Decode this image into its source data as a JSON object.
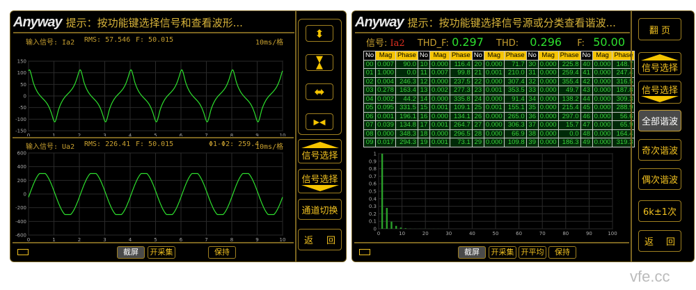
{
  "left": {
    "logo": "Anyway",
    "hint": "提示：按功能键选择信号和查看波形...",
    "ch1": {
      "label": "输入信号: Ia2",
      "rms": "RMS: 57.546",
      "freq": "F: 50.015",
      "scale": "10ms/格"
    },
    "ch2": {
      "label": "输入信号: Ua2",
      "rms": "RMS: 226.41",
      "freq": "F: 50.015",
      "phase": "Φ1-Φ2: 259.4",
      "scale": "10ms/格"
    },
    "side": {
      "expand_v_icon": "expand-vertical",
      "compress_v_icon": "compress-vertical",
      "expand_h_icon": "expand-horizontal",
      "compress_h_icon": "compress-horizontal",
      "signal_up": "信号选择",
      "signal_down": "信号选择",
      "channel": "通道切换",
      "back_a": "返",
      "back_b": "回"
    },
    "bottom": {
      "screenshot": "截屏",
      "acquire": "开采集",
      "hold": "保持"
    }
  },
  "right": {
    "logo": "Anyway",
    "hint": "提示：按功能键选择信号源或分类查看谐波...",
    "signal_label": "信号:",
    "signal": "Ia2",
    "thdf_label": "THD_F:",
    "thdf": "0.297",
    "thd_label": "THD:",
    "thd": "0.296",
    "f_label": "F:",
    "f": "50.00",
    "table_headers": [
      "No",
      "Mag",
      "Phase"
    ],
    "side": {
      "page": "翻  页",
      "signal_up": "信号选择",
      "signal_down": "信号选择",
      "all": "全部谐波",
      "odd": "奇次谐波",
      "even": "偶次谐波",
      "k6": "6k±1次",
      "back_a": "返",
      "back_b": "回"
    },
    "bottom": {
      "screenshot": "截屏",
      "acquire": "开采集",
      "average": "开平均",
      "hold": "保持"
    }
  },
  "harmonics": [
    [
      "00",
      "0.007",
      "90.0"
    ],
    [
      "01",
      "1.000",
      "0.0"
    ],
    [
      "02",
      "0.004",
      "246.3"
    ],
    [
      "03",
      "0.278",
      "163.4"
    ],
    [
      "04",
      "0.002",
      "44.2"
    ],
    [
      "05",
      "0.095",
      "331.5"
    ],
    [
      "06",
      "0.001",
      "196.1"
    ],
    [
      "07",
      "0.039",
      "134.8"
    ],
    [
      "08",
      "0.000",
      "348.3"
    ],
    [
      "09",
      "0.017",
      "294.3"
    ],
    [
      "10",
      "0.000",
      "116.4"
    ],
    [
      "11",
      "0.007",
      "99.8"
    ],
    [
      "12",
      "0.000",
      "237.5"
    ],
    [
      "13",
      "0.002",
      "277.3"
    ],
    [
      "14",
      "0.000",
      "335.8"
    ],
    [
      "15",
      "0.001",
      "109.1"
    ],
    [
      "16",
      "0.000",
      "134.1"
    ],
    [
      "17",
      "0.001",
      "264.7"
    ],
    [
      "18",
      "0.000",
      "296.5"
    ],
    [
      "19",
      "0.001",
      "73.1"
    ],
    [
      "20",
      "0.000",
      "71.7"
    ],
    [
      "21",
      "0.001",
      "210.0"
    ],
    [
      "22",
      "0.000",
      "307.4"
    ],
    [
      "23",
      "0.001",
      "353.5"
    ],
    [
      "24",
      "0.000",
      "91.4"
    ],
    [
      "25",
      "0.001",
      "155.1"
    ],
    [
      "26",
      "0.000",
      "265.0"
    ],
    [
      "27",
      "0.000",
      "306.3"
    ],
    [
      "28",
      "0.000",
      "66.9"
    ],
    [
      "29",
      "0.000",
      "109.8"
    ],
    [
      "30",
      "0.000",
      "225.8"
    ],
    [
      "31",
      "0.000",
      "259.4"
    ],
    [
      "32",
      "0.000",
      "355.4"
    ],
    [
      "33",
      "0.000",
      "49.7"
    ],
    [
      "34",
      "0.000",
      "138.2"
    ],
    [
      "35",
      "0.000",
      "215.4"
    ],
    [
      "36",
      "0.000",
      "297.0"
    ],
    [
      "37",
      "0.000",
      "15.7"
    ],
    [
      "38",
      "0.000",
      "0.0"
    ],
    [
      "39",
      "0.000",
      "186.3"
    ],
    [
      "40",
      "0.000",
      "148.7"
    ],
    [
      "41",
      "0.000",
      "247.4"
    ],
    [
      "42",
      "0.000",
      "316.5"
    ],
    [
      "43",
      "0.000",
      "187.8"
    ],
    [
      "44",
      "0.000",
      "309.3"
    ],
    [
      "45",
      "0.000",
      "288.9"
    ],
    [
      "46",
      "0.000",
      "56.6"
    ],
    [
      "47",
      "0.000",
      "65.9"
    ],
    [
      "48",
      "0.000",
      "164.4"
    ],
    [
      "49",
      "0.000",
      "319.3"
    ]
  ],
  "chart_data": [
    {
      "type": "line",
      "title": "",
      "xlim": [
        0,
        10
      ],
      "ylim": [
        -150,
        150
      ],
      "xticks": [
        "0",
        "1",
        "2",
        "3",
        "4",
        "5",
        "6",
        "7",
        "8",
        "9",
        "10"
      ],
      "yticks": [
        "150",
        "100",
        "50",
        "0",
        "-50",
        "-100",
        "-150"
      ],
      "grid": true,
      "series": [
        {
          "signal": "Ia2",
          "rms": 57.546,
          "freq": 50.015,
          "harmonic_source": "harmonics"
        }
      ],
      "color": "#2ee02e"
    },
    {
      "type": "line",
      "title": "",
      "xlim": [
        0,
        10
      ],
      "ylim": [
        -600,
        600
      ],
      "xticks": [
        "0",
        "1",
        "2",
        "3",
        "4",
        "5",
        "6",
        "7",
        "8",
        "9",
        "10"
      ],
      "yticks": [
        "600",
        "400",
        "200",
        "0",
        "-200",
        "-400",
        "-600"
      ],
      "grid": true,
      "series": [
        {
          "signal": "Ua2",
          "rms": 226.41,
          "freq": 50.015,
          "peak_clip": 300
        }
      ],
      "color": "#2ee02e"
    },
    {
      "type": "bar",
      "title": "",
      "xlim": [
        0,
        100
      ],
      "ylim": [
        0,
        1
      ],
      "xticks": [
        "0",
        "10",
        "20",
        "30",
        "40",
        "50",
        "60",
        "70",
        "80",
        "90",
        "100"
      ],
      "yticks": [
        "1",
        "0.9",
        "0.8",
        "0.7",
        "0.6",
        "0.5",
        "0.4",
        "0.3",
        "0.2",
        "0.1",
        "0"
      ],
      "grid": true,
      "values_from": "harmonics.mag",
      "color": "#2aa02a"
    }
  ],
  "watermark": "vfe.cc"
}
